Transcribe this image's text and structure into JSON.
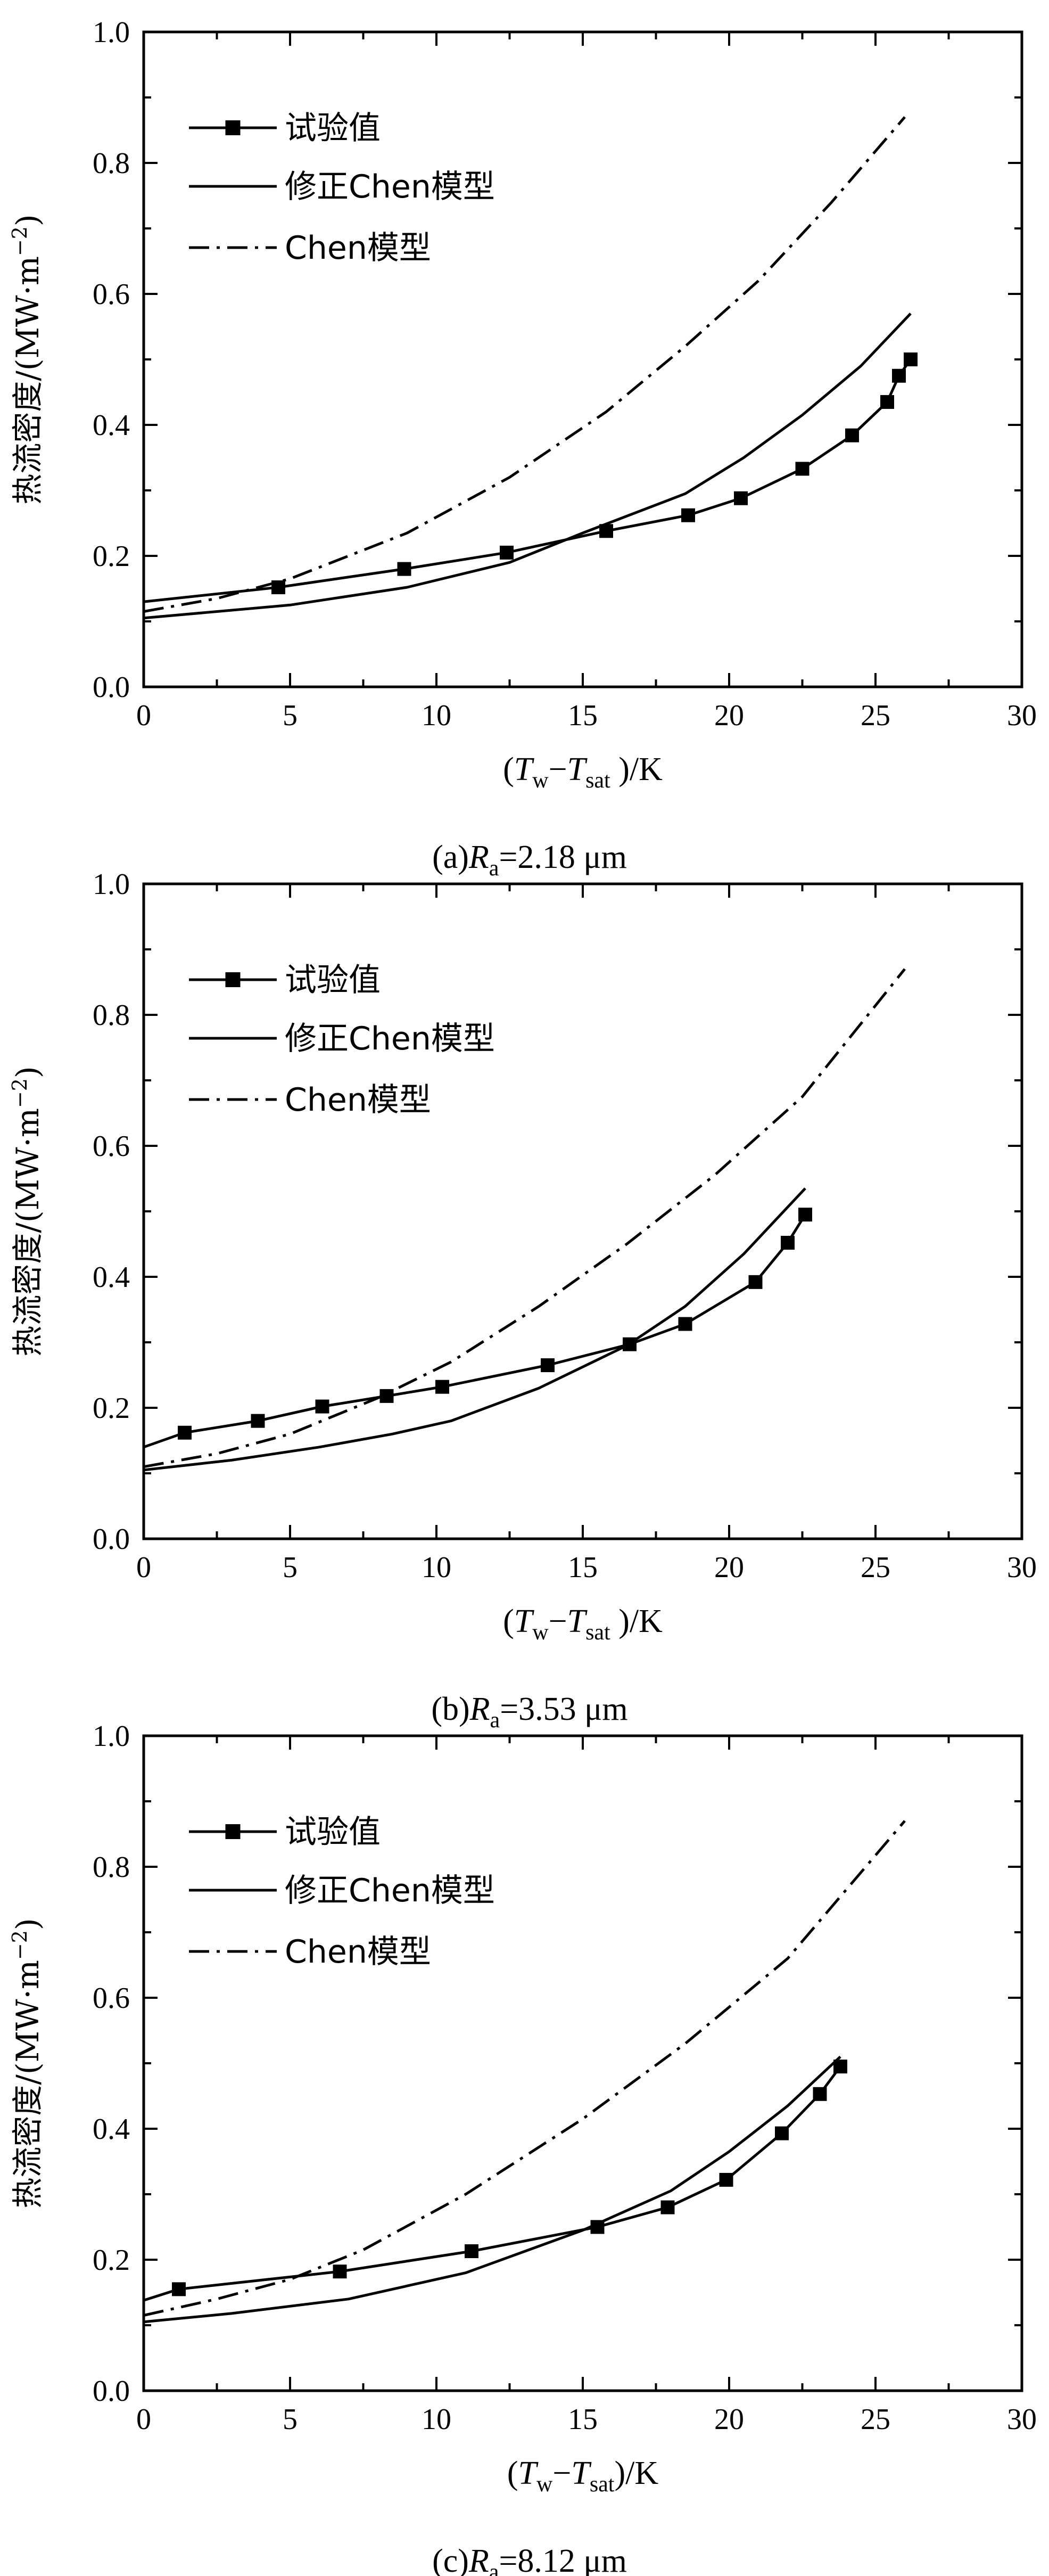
{
  "chart_data": [
    {
      "type": "line",
      "ylabel_main": "热流密度/(MW·m",
      "ylabel_sup": "−2",
      "ylabel_close": ")",
      "xlabel": {
        "open": "(",
        "T1": "T",
        "sub1": "w",
        "minus": "−",
        "T2": "T",
        "sub2": "sat",
        "close": " )/K"
      },
      "caption": {
        "prefix": "(a)",
        "R": "R",
        "sub": "a",
        "value": "=2.18 μm"
      },
      "xlim": [
        0,
        30
      ],
      "ylim": [
        0.0,
        1.0
      ],
      "xticks": [
        "0",
        "5",
        "10",
        "15",
        "20",
        "25",
        "30"
      ],
      "yticks": [
        "0.0",
        "0.2",
        "0.4",
        "0.6",
        "0.8",
        "1.0"
      ],
      "legend": {
        "position": "top-left",
        "entries": [
          "试验值",
          "修正Chen模型",
          "Chen模型"
        ]
      },
      "series": [
        {
          "name": "试验值",
          "style": "line-marker",
          "x": [
            0,
            4.6,
            8.9,
            12.4,
            15.8,
            18.6,
            20.4,
            22.5,
            24.2,
            25.4,
            25.8,
            26.2
          ],
          "y": [
            0.13,
            0.152,
            0.18,
            0.205,
            0.238,
            0.262,
            0.288,
            0.333,
            0.384,
            0.435,
            0.475,
            0.5
          ]
        },
        {
          "name": "修正Chen模型",
          "style": "solid",
          "x": [
            0,
            5,
            9,
            12.5,
            15,
            18.5,
            20.5,
            22.5,
            24.5,
            26.2
          ],
          "y": [
            0.105,
            0.125,
            0.152,
            0.19,
            0.235,
            0.295,
            0.35,
            0.415,
            0.49,
            0.57
          ]
        },
        {
          "name": "Chen模型",
          "style": "dashdot",
          "x": [
            0,
            2.5,
            5,
            9,
            12.5,
            15.8,
            18.5,
            21,
            23.5,
            26
          ],
          "y": [
            0.115,
            0.135,
            0.165,
            0.235,
            0.32,
            0.42,
            0.52,
            0.62,
            0.74,
            0.87
          ]
        }
      ]
    },
    {
      "type": "line",
      "ylabel_main": "热流密度/(MW·m",
      "ylabel_sup": "−2",
      "ylabel_close": ")",
      "xlabel": {
        "open": "(",
        "T1": "T",
        "sub1": "w",
        "minus": "−",
        "T2": "T",
        "sub2": "sat",
        "close": " )/K"
      },
      "caption": {
        "prefix": "(b)",
        "R": "R",
        "sub": "a",
        "value": "=3.53 μm"
      },
      "xlim": [
        0,
        30
      ],
      "ylim": [
        0.0,
        1.0
      ],
      "xticks": [
        "0",
        "5",
        "10",
        "15",
        "20",
        "25",
        "30"
      ],
      "yticks": [
        "0.0",
        "0.2",
        "0.4",
        "0.6",
        "0.8",
        "1.0"
      ],
      "legend": {
        "position": "top-left",
        "entries": [
          "试验值",
          "修正Chen模型",
          "Chen模型"
        ]
      },
      "series": [
        {
          "name": "试验值",
          "style": "line-marker",
          "x": [
            0,
            1.4,
            3.9,
            6.1,
            8.3,
            10.2,
            13.8,
            16.6,
            18.5,
            20.9,
            22.0,
            22.6
          ],
          "y": [
            0.14,
            0.162,
            0.18,
            0.202,
            0.218,
            0.232,
            0.265,
            0.297,
            0.328,
            0.392,
            0.452,
            0.495
          ]
        },
        {
          "name": "修正Chen模型",
          "style": "solid",
          "x": [
            0,
            3,
            6,
            8.5,
            10.5,
            13.5,
            16.5,
            18.5,
            20.5,
            22.6
          ],
          "y": [
            0.105,
            0.12,
            0.14,
            0.16,
            0.18,
            0.23,
            0.295,
            0.355,
            0.435,
            0.535
          ]
        },
        {
          "name": "Chen模型",
          "style": "dashdot",
          "x": [
            0,
            2.5,
            5,
            8,
            10.5,
            13.5,
            16.5,
            19.5,
            22.5,
            26
          ],
          "y": [
            0.11,
            0.13,
            0.16,
            0.215,
            0.27,
            0.355,
            0.45,
            0.555,
            0.675,
            0.87
          ]
        }
      ]
    },
    {
      "type": "line",
      "ylabel_main": "热流密度/(MW·m",
      "ylabel_sup": "−2",
      "ylabel_close": ")",
      "xlabel": {
        "open": "(",
        "T1": "T",
        "sub1": "w",
        "minus": "−",
        "T2": "T",
        "sub2": "sat",
        "close": ")/K"
      },
      "caption": {
        "prefix": "(c)",
        "R": "R",
        "sub": "a",
        "value": "=8.12 μm"
      },
      "xlim": [
        0,
        30
      ],
      "ylim": [
        0.0,
        1.0
      ],
      "xticks": [
        "0",
        "5",
        "10",
        "15",
        "20",
        "25",
        "30"
      ],
      "yticks": [
        "0.0",
        "0.2",
        "0.4",
        "0.6",
        "0.8",
        "1.0"
      ],
      "legend": {
        "position": "top-left",
        "entries": [
          "试验值",
          "修正Chen模型",
          "Chen模型"
        ]
      },
      "series": [
        {
          "name": "试验值",
          "style": "line-marker",
          "x": [
            0,
            1.2,
            6.7,
            11.2,
            15.5,
            17.9,
            19.9,
            21.8,
            23.1,
            23.8
          ],
          "y": [
            0.138,
            0.155,
            0.182,
            0.213,
            0.25,
            0.28,
            0.322,
            0.393,
            0.453,
            0.495
          ]
        },
        {
          "name": "修正Chen模型",
          "style": "solid",
          "x": [
            0,
            3,
            7,
            11,
            15,
            18,
            20,
            22,
            23.8
          ],
          "y": [
            0.105,
            0.118,
            0.14,
            0.18,
            0.245,
            0.305,
            0.365,
            0.435,
            0.51
          ]
        },
        {
          "name": "Chen模型",
          "style": "dashdot",
          "x": [
            0,
            2.5,
            5,
            7.5,
            11,
            15,
            18.5,
            22,
            26
          ],
          "y": [
            0.115,
            0.14,
            0.17,
            0.215,
            0.3,
            0.415,
            0.53,
            0.66,
            0.87
          ]
        }
      ]
    }
  ]
}
